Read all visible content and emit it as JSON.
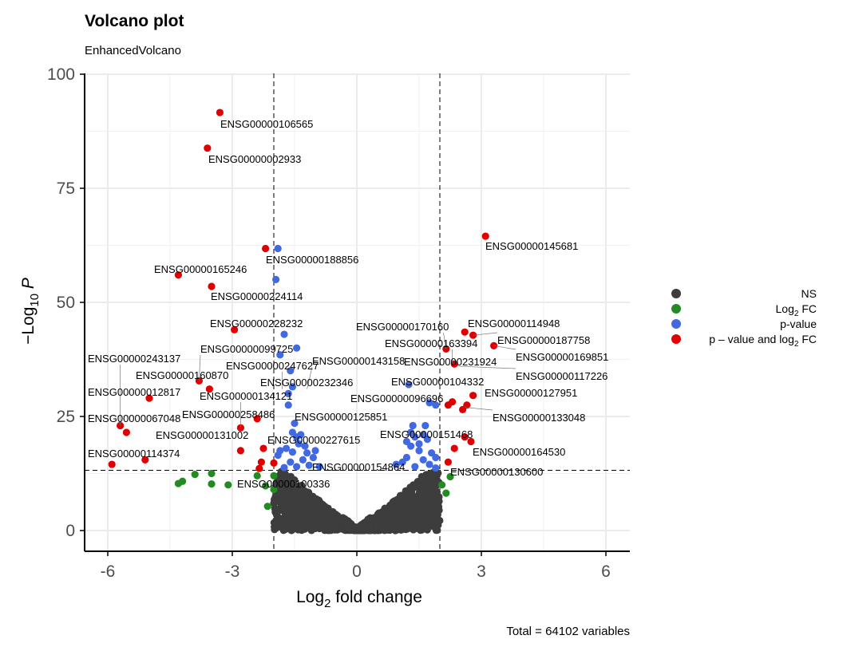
{
  "chart_data": {
    "type": "scatter",
    "title": "Volcano plot",
    "subtitle": "EnhancedVolcano",
    "xlabel": "Log2 fold change",
    "ylabel": "-Log10 P",
    "caption": "Total = 64102 variables",
    "xlim": [
      -6.8,
      6.8
    ],
    "ylim": [
      -4.5,
      100.5
    ],
    "x_ticks": [
      -6,
      -3,
      0,
      3,
      6
    ],
    "x_tick_labels": [
      "-6",
      "-3",
      "0",
      "3",
      "6"
    ],
    "y_ticks": [
      0,
      25,
      50,
      75,
      100
    ],
    "y_tick_labels": [
      "0",
      "25",
      "50",
      "75",
      "100"
    ],
    "fc_cutoff": 2,
    "p_cutoff": 13.2,
    "grid": true,
    "legend_position": "right",
    "legend": [
      {
        "key": "ns",
        "label": "NS",
        "color": "#3d3d3d"
      },
      {
        "key": "fc",
        "label": "Log2 FC",
        "color": "#228b22"
      },
      {
        "key": "p",
        "label": "p-value",
        "color": "#4169e1"
      },
      {
        "key": "both",
        "label": "p – value and log2 FC",
        "color": "#e00000"
      }
    ],
    "labeled_points": [
      {
        "x": -3.3,
        "y": 91.6,
        "label": "ENSG00000106565"
      },
      {
        "x": -3.6,
        "y": 83.8,
        "label": "ENSG00000002933"
      },
      {
        "x": 3.1,
        "y": 64.5,
        "label": "ENSG00000145681"
      },
      {
        "x": -2.2,
        "y": 61.8,
        "label": "ENSG00000188856"
      },
      {
        "x": -4.3,
        "y": 56.0,
        "label": "ENSG00000165246"
      },
      {
        "x": -3.5,
        "y": 53.5,
        "label": "ENSG00000224114"
      },
      {
        "x": -2.95,
        "y": 44.0,
        "label": "ENSG00000228232"
      },
      {
        "x": 2.6,
        "y": 43.5,
        "label": "ENSG00000114948"
      },
      {
        "x": 2.8,
        "y": 42.8,
        "label": "ENSG00000187758"
      },
      {
        "x": 2.15,
        "y": 39.8,
        "label": "ENSG00000170160"
      },
      {
        "x": 3.3,
        "y": 40.5,
        "label": "ENSG00000169851"
      },
      {
        "x": 2.3,
        "y": 36.5,
        "label": "ENSG00000163394"
      },
      {
        "x": 2.35,
        "y": 36.5,
        "label": "ENSG00000231924"
      },
      {
        "x": -3.8,
        "y": 32.8,
        "label": "ENSG00000099725"
      },
      {
        "x": -1.8,
        "y": 31.0,
        "label": "ENSG00000247627"
      },
      {
        "x": -1.2,
        "y": 31.0,
        "label": "ENSG00000143158"
      },
      {
        "x": -5.7,
        "y": 23.0,
        "label": "ENSG00000243137"
      },
      {
        "x": -3.55,
        "y": 31.0,
        "label": "ENSG00000160870"
      },
      {
        "x": 2.45,
        "y": 36.0,
        "label": "ENSG00000117226"
      },
      {
        "x": 1.65,
        "y": 32.0,
        "label": "ENSG00000104332"
      },
      {
        "x": -1.6,
        "y": 30.0,
        "label": "ENSG00000232346"
      },
      {
        "x": 2.8,
        "y": 29.6,
        "label": "ENSG00000127951"
      },
      {
        "x": -5.0,
        "y": 29.0,
        "label": "ENSG00000012817"
      },
      {
        "x": 1.7,
        "y": 27.5,
        "label": "ENSG00000096696"
      },
      {
        "x": -2.8,
        "y": 22.5,
        "label": "ENSG00000134121"
      },
      {
        "x": -2.4,
        "y": 24.5,
        "label": "ENSG00000258486"
      },
      {
        "x": -1.6,
        "y": 25.5,
        "label": "ENSG00000125851"
      },
      {
        "x": 2.6,
        "y": 27.0,
        "label": "ENSG00000133048"
      },
      {
        "x": -5.8,
        "y": 23.0,
        "label": "ENSG00000067048"
      },
      {
        "x": -5.2,
        "y": 21.5,
        "label": "ENSG00000131002"
      },
      {
        "x": -2.25,
        "y": 17.5,
        "label": "ENSG00000227615"
      },
      {
        "x": 2.2,
        "y": 19.0,
        "label": "ENSG00000151468"
      },
      {
        "x": 2.7,
        "y": 19.5,
        "label": "ENSG00000164530"
      },
      {
        "x": -5.9,
        "y": 14.5,
        "label": "ENSG00000114374"
      },
      {
        "x": -1.3,
        "y": 14.0,
        "label": "ENSG00000154864"
      },
      {
        "x": 2.2,
        "y": 15.0,
        "label": "ENSG00000130600"
      },
      {
        "x": -2.1,
        "y": 11.8,
        "label": "ENSG00000100336"
      }
    ]
  }
}
